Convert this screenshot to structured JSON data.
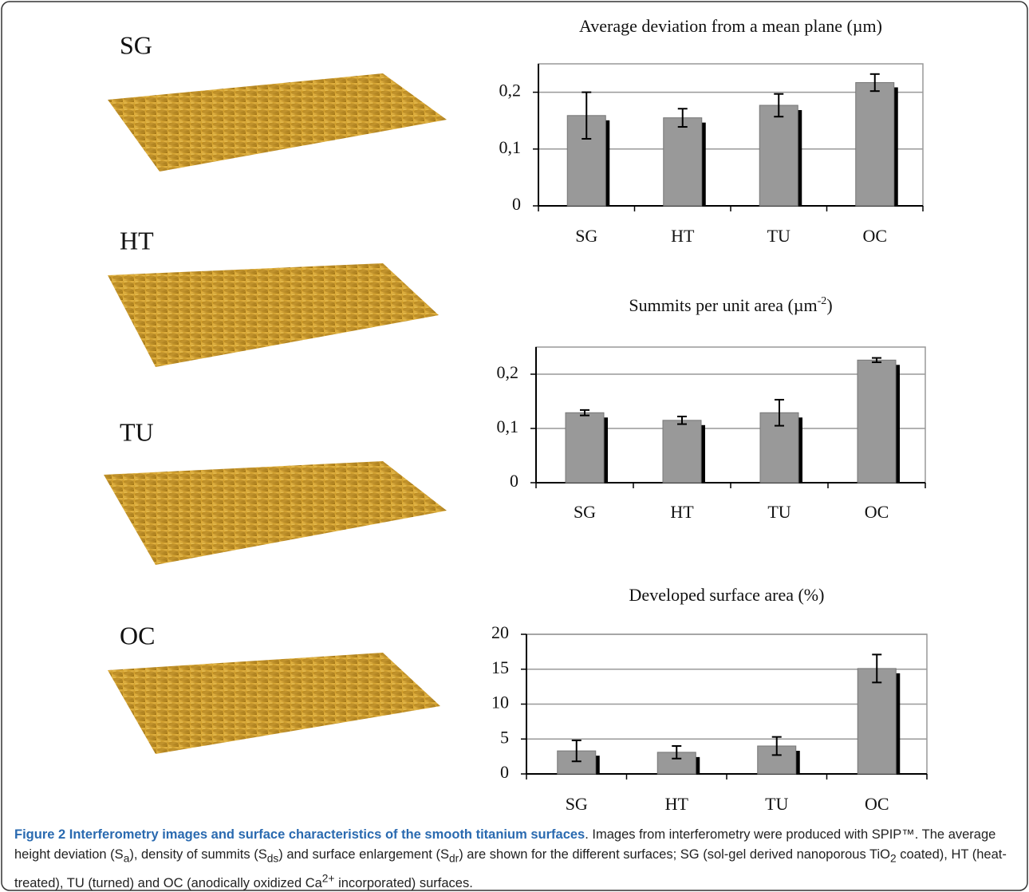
{
  "figure": {
    "panel_labels": [
      "SG",
      "HT",
      "TU",
      "OC"
    ],
    "caption": {
      "title": "Figure 2 Interferometry images and surface characteristics of the smooth titanium surfaces",
      "body": [
        ". Images from interferometry were produced with SPIP™. The average height deviation (S",
        {
          "sub": "a"
        },
        "), density of summits (S",
        {
          "sub": "ds"
        },
        ") and surface enlargement (S",
        {
          "sub": "dr"
        },
        ") are shown for the different surfaces; SG (sol-gel derived nanoporous TiO",
        {
          "sub": "2"
        },
        " coated), HT (heat-treated), TU (turned) and OC (anodically oxidized Ca",
        {
          "sup": "2+"
        },
        " incorporated) surfaces."
      ]
    }
  },
  "chart_data": [
    {
      "type": "bar",
      "title": "Average deviation from a mean plane (µm)",
      "categories": [
        "SG",
        "HT",
        "TU",
        "OC"
      ],
      "values": [
        0.159,
        0.155,
        0.177,
        0.217
      ],
      "errors": [
        0.041,
        0.016,
        0.02,
        0.015
      ],
      "color": "#999999",
      "ylim": [
        0,
        0.25
      ],
      "yticks": [
        0,
        {
          "value": 0.1,
          "label": "0,1"
        },
        {
          "value": 0.2,
          "label": "0,2"
        }
      ],
      "grid": true
    },
    {
      "type": "bar",
      "title": [
        "Summits per unit area (µm",
        {
          "sup": "-2"
        },
        ")"
      ],
      "categories": [
        "SG",
        "HT",
        "TU",
        "OC"
      ],
      "values": [
        0.129,
        0.115,
        0.129,
        0.226
      ],
      "errors": [
        0.005,
        0.007,
        0.024,
        0.004
      ],
      "color": "#999999",
      "ylim": [
        0,
        0.25
      ],
      "yticks": [
        0,
        {
          "value": 0.1,
          "label": "0,1"
        },
        {
          "value": 0.2,
          "label": "0,2"
        }
      ],
      "grid": true
    },
    {
      "type": "bar",
      "title": "Developed surface area (%)",
      "categories": [
        "SG",
        "HT",
        "TU",
        "OC"
      ],
      "values": [
        3.3,
        3.1,
        4.0,
        15.1
      ],
      "errors": [
        1.5,
        0.9,
        1.3,
        2.0
      ],
      "color": "#999999",
      "ylim": [
        0,
        20
      ],
      "yticks": [
        0,
        5,
        10,
        15,
        20
      ],
      "grid": true
    }
  ]
}
